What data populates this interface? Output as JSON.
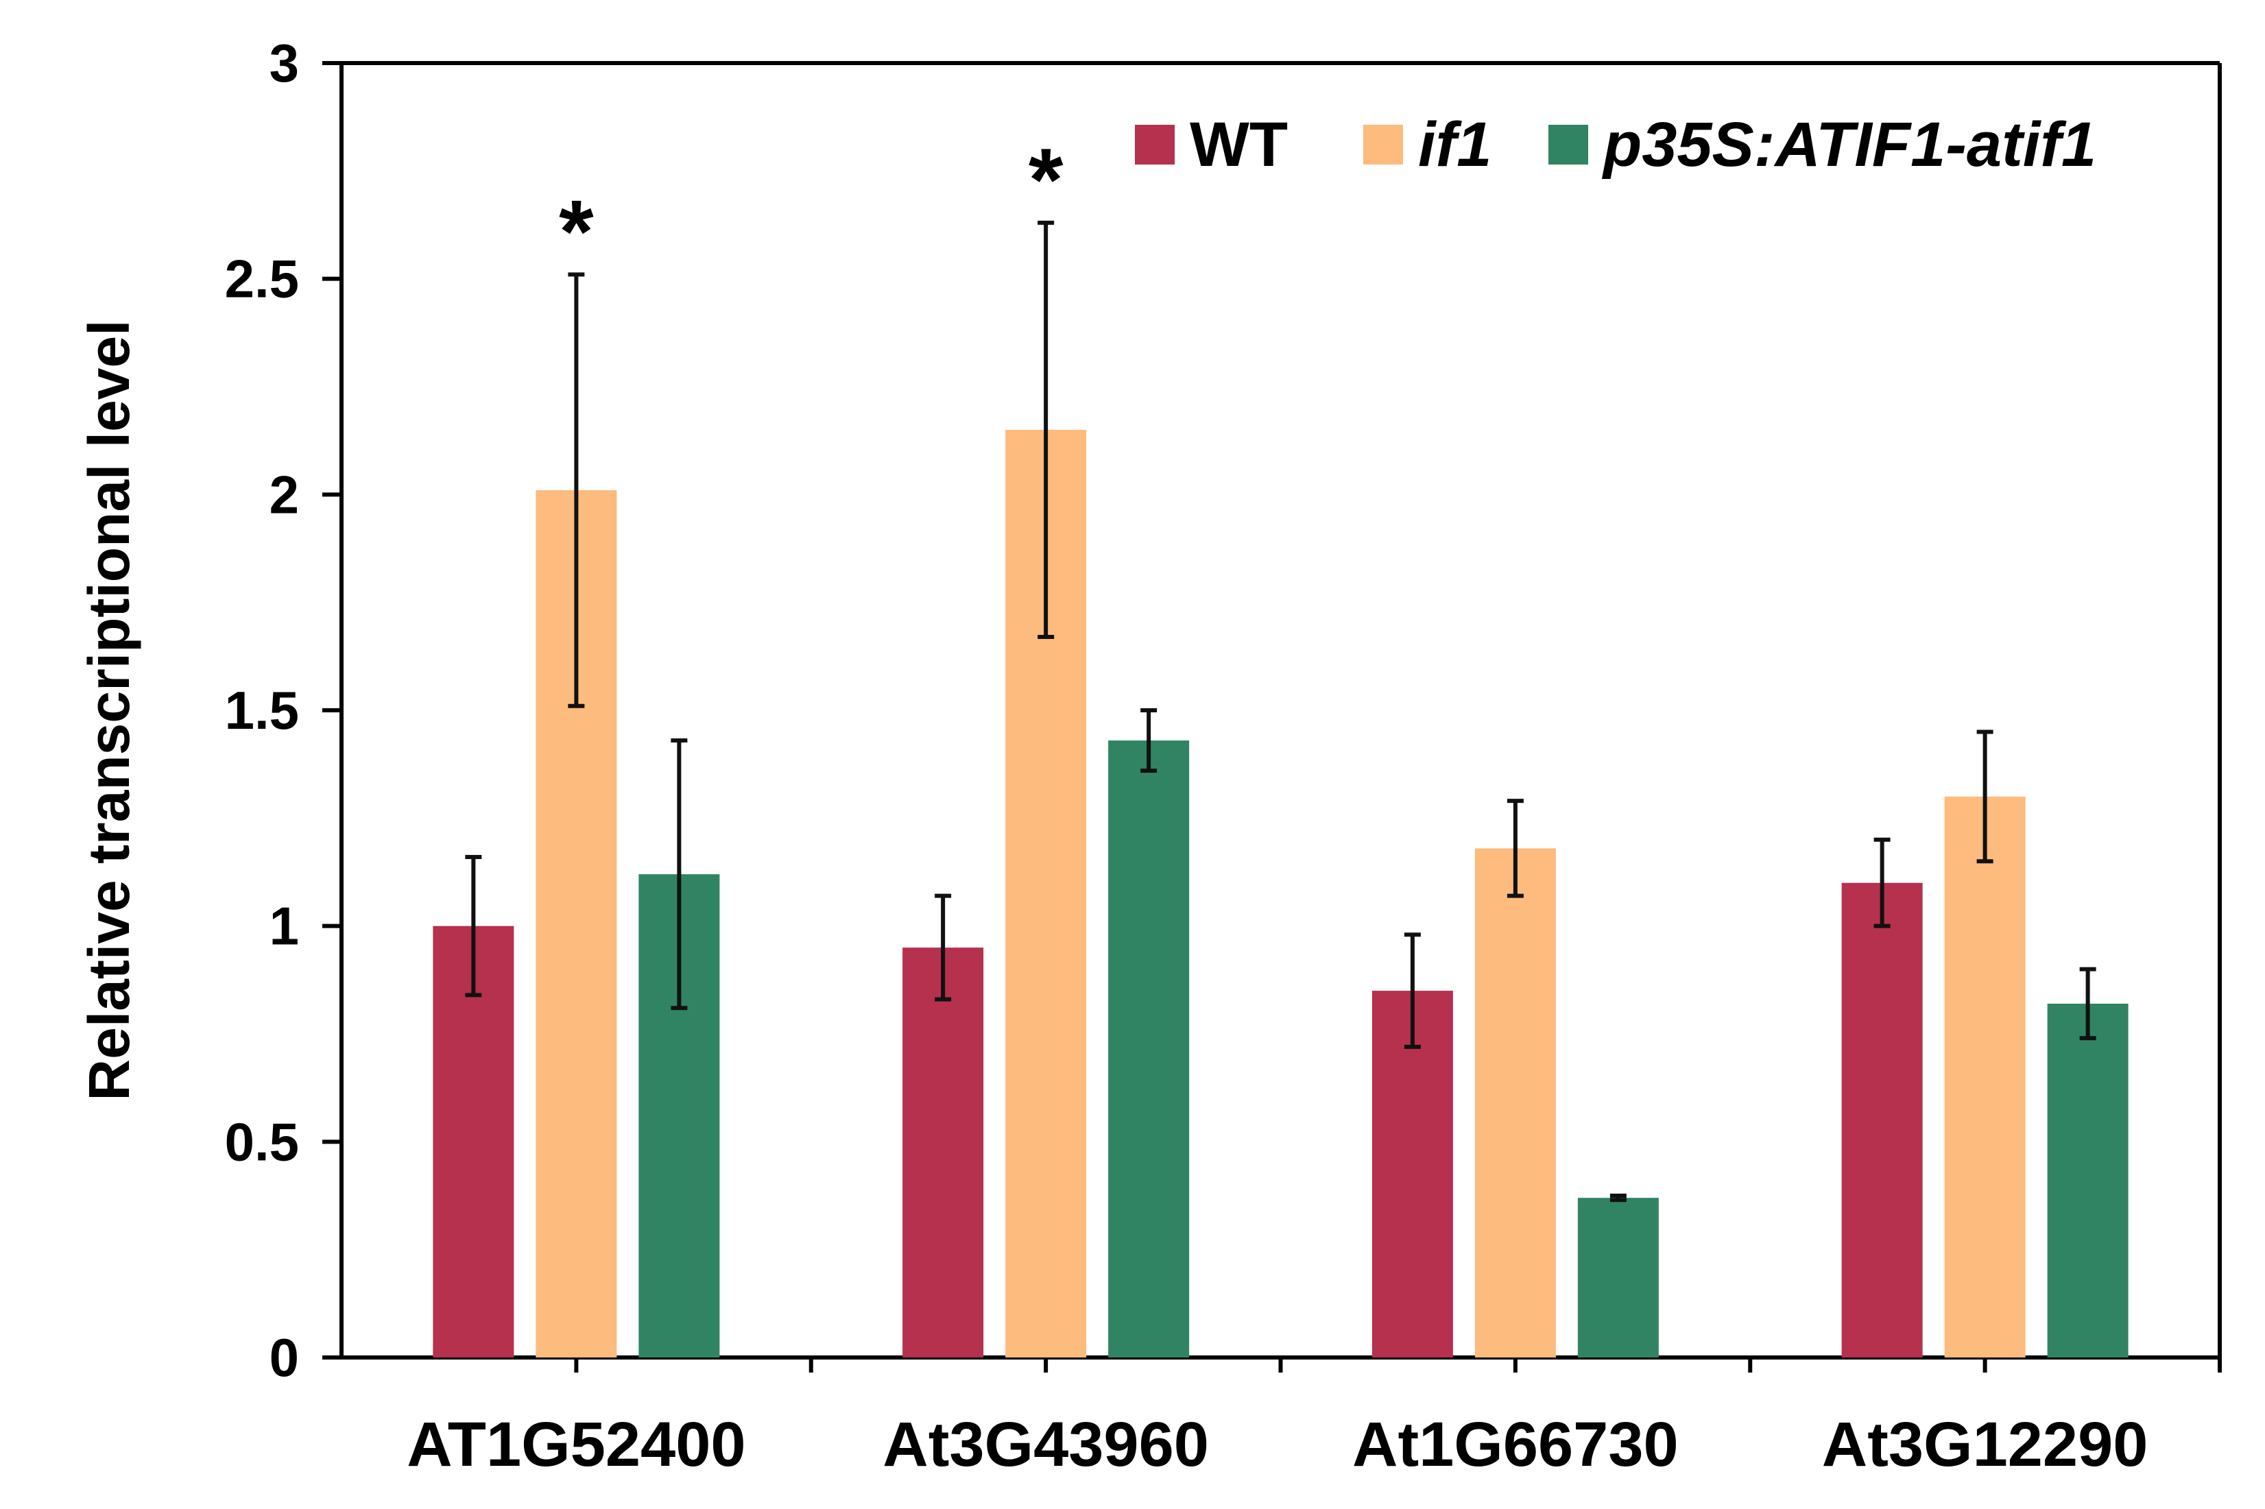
{
  "chart_data": {
    "type": "bar",
    "title": "",
    "xlabel": "",
    "ylabel": "Relative transcriptional level",
    "ylim": [
      0,
      3
    ],
    "yticks": [
      0,
      0.5,
      1,
      1.5,
      2,
      2.5,
      3
    ],
    "ytick_labels": [
      "0",
      "0.5",
      "1",
      "1.5",
      "2",
      "2.5",
      "3"
    ],
    "categories": [
      "AT1G52400",
      "At3G43960",
      "At1G66730",
      "At3G12290"
    ],
    "series": [
      {
        "name": "WT",
        "italic": false,
        "color": "#B5314E",
        "values": [
          1.0,
          0.95,
          0.85,
          1.1
        ],
        "errors": [
          0.16,
          0.12,
          0.13,
          0.1
        ]
      },
      {
        "name": "if1",
        "italic": true,
        "color": "#FDBB7D",
        "values": [
          2.01,
          2.15,
          1.18,
          1.3
        ],
        "errors": [
          0.5,
          0.48,
          0.11,
          0.15
        ]
      },
      {
        "name": "p35S:ATIF1-atif1",
        "italic": true,
        "color": "#318463",
        "values": [
          1.12,
          1.43,
          0.37,
          0.82
        ],
        "errors": [
          0.31,
          0.07,
          0.005,
          0.08
        ]
      }
    ],
    "annotations": [
      {
        "category_index": 0,
        "series_index": 1,
        "text": "*"
      },
      {
        "category_index": 1,
        "series_index": 1,
        "text": "*"
      }
    ],
    "legend_position": "top-right",
    "grid": false
  }
}
